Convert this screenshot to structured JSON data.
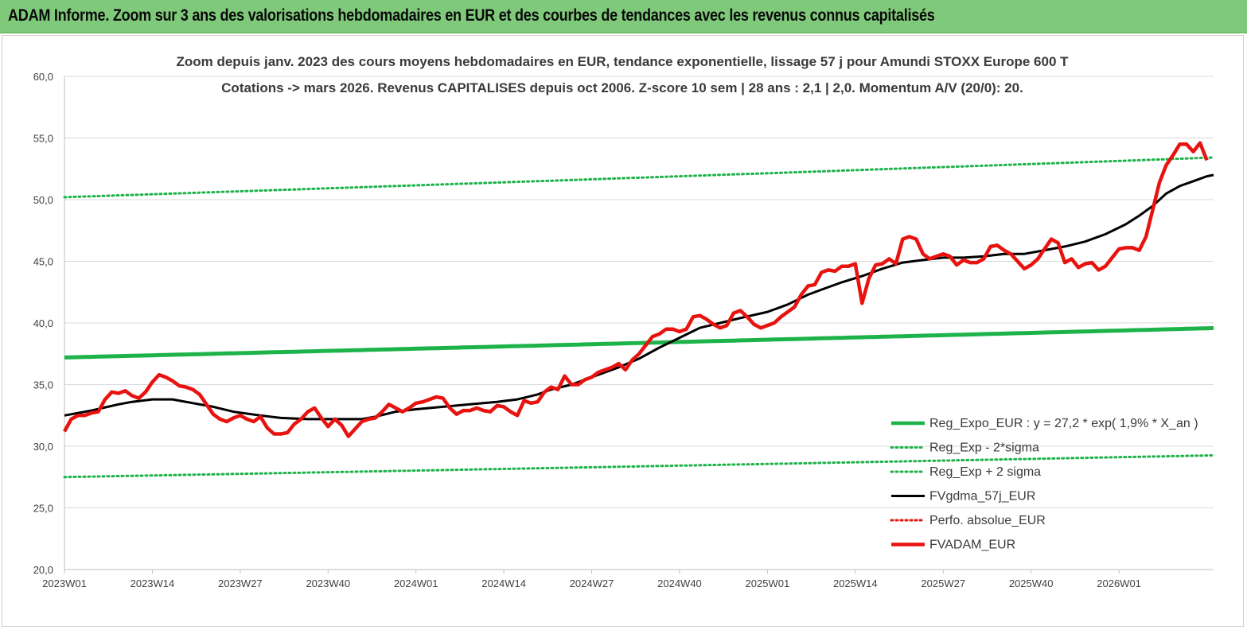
{
  "header": {
    "title": "ADAM Informe. Zoom sur 3 ans des valorisations hebdomadaires en EUR et des courbes de tendances avec les revenus connus capitalisés"
  },
  "colors": {
    "header_bg": "#7fc97a",
    "green": "#1db34a",
    "black": "#000000",
    "red": "#e8120f",
    "grid": "#d9d9d9"
  },
  "chart_data": {
    "type": "line",
    "title": "Zoom depuis janv. 2023 des cours moyens hebdomadaires en EUR, tendance exponentielle, lissage 57 j pour Amundi STOXX Europe 600 T",
    "subtitle": "Cotations -> mars 2026. Revenus CAPITALISES depuis oct 2006. Z-score 10 sem | 28 ans : 2,1 | 2,0. Momentum A/V (20/0): 20.",
    "xlabel": "",
    "ylabel": "",
    "ylim": [
      20,
      60
    ],
    "yticks": [
      "20,0",
      "25,0",
      "30,0",
      "35,0",
      "40,0",
      "45,0",
      "50,0",
      "55,0",
      "60,0"
    ],
    "xtick_labels": [
      "2023W01",
      "2023W14",
      "2023W27",
      "2023W40",
      "2024W01",
      "2024W14",
      "2024W27",
      "2024W40",
      "2025W01",
      "2025W14",
      "2025W27",
      "2025W40",
      "2026W01"
    ],
    "xtick_index": [
      0,
      13,
      26,
      39,
      52,
      65,
      78,
      91,
      104,
      117,
      130,
      143,
      156
    ],
    "x_count": 171,
    "grid": "horizontal",
    "legend_position": "bottom-right",
    "series": [
      {
        "name": "Reg_Expo_EUR : y = 27,2 * exp( 1,9% *  X_an )",
        "style": "solid-thick",
        "color": "#1db34a",
        "formula": {
          "start": 37.2,
          "annual_rate": 0.019
        }
      },
      {
        "name": "Reg_Exp - 2*sigma",
        "style": "dotted",
        "color": "#1db34a",
        "formula": {
          "start": 27.5,
          "annual_rate": 0.019
        }
      },
      {
        "name": "Reg_Exp + 2 sigma",
        "style": "dotted",
        "color": "#1db34a",
        "formula": {
          "start": 50.2,
          "annual_rate": 0.019
        }
      },
      {
        "name": "FVgdma_57j_EUR",
        "style": "solid",
        "color": "#000000",
        "points": [
          [
            0,
            32.5
          ],
          [
            4,
            32.9
          ],
          [
            8,
            33.4
          ],
          [
            10,
            33.6
          ],
          [
            13,
            33.8
          ],
          [
            16,
            33.8
          ],
          [
            19,
            33.5
          ],
          [
            22,
            33.2
          ],
          [
            25,
            32.8
          ],
          [
            29,
            32.5
          ],
          [
            32,
            32.3
          ],
          [
            36,
            32.2
          ],
          [
            39,
            32.2
          ],
          [
            44,
            32.2
          ],
          [
            46,
            32.4
          ],
          [
            49,
            32.8
          ],
          [
            52,
            33.0
          ],
          [
            56,
            33.2
          ],
          [
            60,
            33.4
          ],
          [
            64,
            33.6
          ],
          [
            67,
            33.8
          ],
          [
            70,
            34.2
          ],
          [
            72,
            34.6
          ],
          [
            75,
            35.0
          ],
          [
            78,
            35.6
          ],
          [
            82,
            36.4
          ],
          [
            85,
            37.1
          ],
          [
            88,
            38.0
          ],
          [
            91,
            38.8
          ],
          [
            94,
            39.6
          ],
          [
            97,
            40.0
          ],
          [
            100,
            40.4
          ],
          [
            104,
            40.9
          ],
          [
            107,
            41.5
          ],
          [
            110,
            42.3
          ],
          [
            112,
            42.7
          ],
          [
            115,
            43.3
          ],
          [
            118,
            43.8
          ],
          [
            121,
            44.4
          ],
          [
            124,
            44.9
          ],
          [
            127,
            45.1
          ],
          [
            130,
            45.3
          ],
          [
            133,
            45.3
          ],
          [
            136,
            45.4
          ],
          [
            139,
            45.6
          ],
          [
            142,
            45.6
          ],
          [
            145,
            45.9
          ],
          [
            148,
            46.2
          ],
          [
            151,
            46.6
          ],
          [
            154,
            47.2
          ],
          [
            157,
            48.0
          ],
          [
            159,
            48.7
          ],
          [
            161,
            49.5
          ],
          [
            163,
            50.5
          ],
          [
            165,
            51.1
          ],
          [
            167,
            51.5
          ],
          [
            169,
            51.9
          ],
          [
            170,
            52.0
          ]
        ]
      },
      {
        "name": "Perfo. absolue_EUR",
        "style": "dotted",
        "color": "#e8120f",
        "points": []
      },
      {
        "name": "FVADAM_EUR",
        "style": "solid-thick",
        "color": "#e8120f",
        "points": [
          [
            0,
            31.2
          ],
          [
            1,
            32.2
          ],
          [
            2,
            32.5
          ],
          [
            3,
            32.5
          ],
          [
            4,
            32.7
          ],
          [
            5,
            32.8
          ],
          [
            6,
            33.8
          ],
          [
            7,
            34.4
          ],
          [
            8,
            34.3
          ],
          [
            9,
            34.5
          ],
          [
            10,
            34.1
          ],
          [
            11,
            33.9
          ],
          [
            12,
            34.4
          ],
          [
            13,
            35.2
          ],
          [
            14,
            35.8
          ],
          [
            15,
            35.6
          ],
          [
            16,
            35.3
          ],
          [
            17,
            34.9
          ],
          [
            18,
            34.8
          ],
          [
            19,
            34.6
          ],
          [
            20,
            34.2
          ],
          [
            21,
            33.4
          ],
          [
            22,
            32.6
          ],
          [
            23,
            32.2
          ],
          [
            24,
            32.0
          ],
          [
            25,
            32.3
          ],
          [
            26,
            32.5
          ],
          [
            27,
            32.2
          ],
          [
            28,
            32.0
          ],
          [
            29,
            32.4
          ],
          [
            30,
            31.5
          ],
          [
            31,
            31.0
          ],
          [
            32,
            31.0
          ],
          [
            33,
            31.1
          ],
          [
            34,
            31.8
          ],
          [
            35,
            32.2
          ],
          [
            36,
            32.8
          ],
          [
            37,
            33.1
          ],
          [
            38,
            32.3
          ],
          [
            39,
            31.6
          ],
          [
            40,
            32.2
          ],
          [
            41,
            31.7
          ],
          [
            42,
            30.8
          ],
          [
            43,
            31.4
          ],
          [
            44,
            32.0
          ],
          [
            45,
            32.2
          ],
          [
            46,
            32.3
          ],
          [
            47,
            32.8
          ],
          [
            48,
            33.4
          ],
          [
            49,
            33.1
          ],
          [
            50,
            32.8
          ],
          [
            51,
            33.1
          ],
          [
            52,
            33.5
          ],
          [
            53,
            33.6
          ],
          [
            54,
            33.8
          ],
          [
            55,
            34.0
          ],
          [
            56,
            33.9
          ],
          [
            57,
            33.1
          ],
          [
            58,
            32.6
          ],
          [
            59,
            32.9
          ],
          [
            60,
            32.9
          ],
          [
            61,
            33.1
          ],
          [
            62,
            32.9
          ],
          [
            63,
            32.8
          ],
          [
            64,
            33.3
          ],
          [
            65,
            33.2
          ],
          [
            66,
            32.8
          ],
          [
            67,
            32.5
          ],
          [
            68,
            33.7
          ],
          [
            69,
            33.5
          ],
          [
            70,
            33.6
          ],
          [
            71,
            34.4
          ],
          [
            72,
            34.8
          ],
          [
            73,
            34.6
          ],
          [
            74,
            35.7
          ],
          [
            75,
            35.0
          ],
          [
            76,
            35.0
          ],
          [
            77,
            35.4
          ],
          [
            78,
            35.6
          ],
          [
            79,
            36.0
          ],
          [
            80,
            36.2
          ],
          [
            81,
            36.4
          ],
          [
            82,
            36.7
          ],
          [
            83,
            36.2
          ],
          [
            84,
            37.0
          ],
          [
            85,
            37.5
          ],
          [
            86,
            38.2
          ],
          [
            87,
            38.9
          ],
          [
            88,
            39.1
          ],
          [
            89,
            39.5
          ],
          [
            90,
            39.5
          ],
          [
            91,
            39.3
          ],
          [
            92,
            39.5
          ],
          [
            93,
            40.5
          ],
          [
            94,
            40.6
          ],
          [
            95,
            40.3
          ],
          [
            96,
            39.9
          ],
          [
            97,
            39.6
          ],
          [
            98,
            39.8
          ],
          [
            99,
            40.8
          ],
          [
            100,
            41.0
          ],
          [
            101,
            40.5
          ],
          [
            102,
            39.9
          ],
          [
            103,
            39.6
          ],
          [
            104,
            39.8
          ],
          [
            105,
            40.0
          ],
          [
            106,
            40.5
          ],
          [
            107,
            40.9
          ],
          [
            108,
            41.3
          ],
          [
            109,
            42.3
          ],
          [
            110,
            43.0
          ],
          [
            111,
            43.1
          ],
          [
            112,
            44.1
          ],
          [
            113,
            44.3
          ],
          [
            114,
            44.2
          ],
          [
            115,
            44.6
          ],
          [
            116,
            44.6
          ],
          [
            117,
            44.8
          ],
          [
            118,
            41.6
          ],
          [
            119,
            43.6
          ],
          [
            120,
            44.7
          ],
          [
            121,
            44.8
          ],
          [
            122,
            45.2
          ],
          [
            123,
            44.8
          ],
          [
            124,
            46.8
          ],
          [
            125,
            47.0
          ],
          [
            126,
            46.8
          ],
          [
            127,
            45.6
          ],
          [
            128,
            45.2
          ],
          [
            129,
            45.4
          ],
          [
            130,
            45.6
          ],
          [
            131,
            45.4
          ],
          [
            132,
            44.7
          ],
          [
            133,
            45.1
          ],
          [
            134,
            44.9
          ],
          [
            135,
            44.9
          ],
          [
            136,
            45.2
          ],
          [
            137,
            46.2
          ],
          [
            138,
            46.3
          ],
          [
            139,
            45.9
          ],
          [
            140,
            45.6
          ],
          [
            141,
            45.0
          ],
          [
            142,
            44.4
          ],
          [
            143,
            44.7
          ],
          [
            144,
            45.2
          ],
          [
            145,
            46.0
          ],
          [
            146,
            46.8
          ],
          [
            147,
            46.5
          ],
          [
            148,
            44.9
          ],
          [
            149,
            45.2
          ],
          [
            150,
            44.5
          ],
          [
            151,
            44.8
          ],
          [
            152,
            44.9
          ],
          [
            153,
            44.3
          ],
          [
            154,
            44.6
          ],
          [
            155,
            45.3
          ],
          [
            156,
            46.0
          ],
          [
            157,
            46.1
          ],
          [
            158,
            46.1
          ],
          [
            159,
            45.9
          ],
          [
            160,
            47.0
          ],
          [
            161,
            49.2
          ],
          [
            162,
            51.4
          ],
          [
            163,
            52.8
          ],
          [
            164,
            53.6
          ],
          [
            165,
            54.5
          ],
          [
            166,
            54.5
          ],
          [
            167,
            53.9
          ],
          [
            168,
            54.6
          ],
          [
            169,
            53.2
          ]
        ]
      }
    ]
  }
}
